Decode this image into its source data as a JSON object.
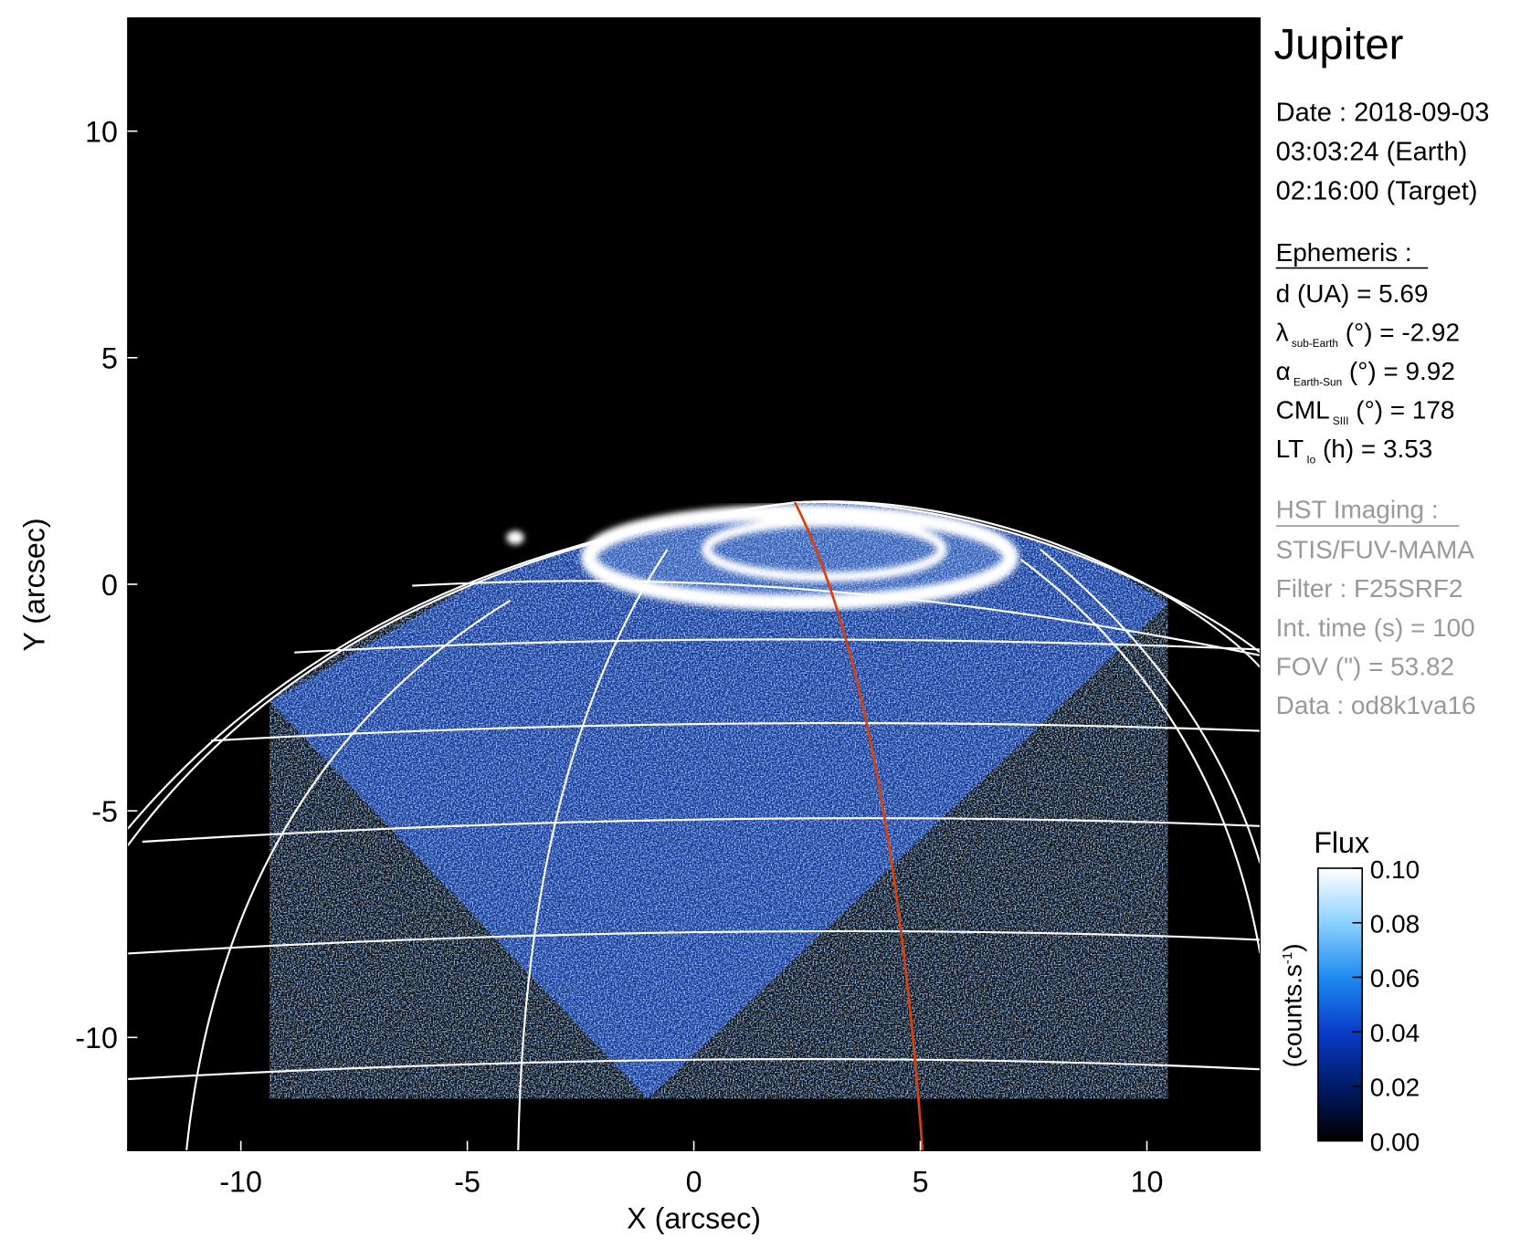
{
  "chart_data": {
    "type": "image",
    "title": "Jupiter",
    "xlabel": "X (arcsec)",
    "ylabel": "Y (arcsec)",
    "xlim": [
      -12.5,
      12.5
    ],
    "ylim": [
      -12.5,
      12.5
    ],
    "xticks": [
      -10,
      -5,
      0,
      5,
      10
    ],
    "yticks": [
      -10,
      -5,
      0,
      5,
      10
    ],
    "colorbar": {
      "title": "Flux",
      "label": {
        "text": "(counts.s",
        "sup": "-1",
        "end": ")"
      },
      "lim": [
        0,
        0.1
      ],
      "ticks": [
        {
          "value": 0,
          "label": "0.00"
        },
        {
          "value": 0.02,
          "label": "0.02"
        },
        {
          "value": 0.04,
          "label": "0.04"
        },
        {
          "value": 0.06,
          "label": "0.06"
        },
        {
          "value": 0.08,
          "label": "0.08"
        },
        {
          "value": 0.1,
          "label": "0.10"
        }
      ],
      "colors": [
        "#000000",
        "#001a66",
        "#0a3cc8",
        "#1e8cf0",
        "#8cd2ff",
        "#ffffff"
      ]
    }
  },
  "info": {
    "date": [
      "Date : 2018-09-03",
      "03:03:24 (Earth)",
      "02:16:00 (Target)"
    ],
    "ephemeris": {
      "heading": "Ephemeris :",
      "lines": [
        {
          "main": "d (UA)    = 5.69"
        },
        {
          "main": "λ",
          "sub": "sub-Earth",
          "rest": " (°) = -2.92"
        },
        {
          "main": "α",
          "sub": "Earth-Sun",
          "rest": " (°) = 9.92"
        },
        {
          "main": "CML",
          "sub": "SIII",
          "rest": " (°) = 178"
        },
        {
          "main": "LT",
          "sub": "Io",
          "rest": " (h) = 3.53"
        }
      ]
    },
    "instrument": {
      "heading": "HST Imaging :",
      "lines": [
        "STIS/FUV-MAMA",
        "Filter : F25SRF2",
        "Int. time (s) = 100",
        "FOV (\") = 53.82",
        "Data : od8k1va16"
      ]
    }
  }
}
